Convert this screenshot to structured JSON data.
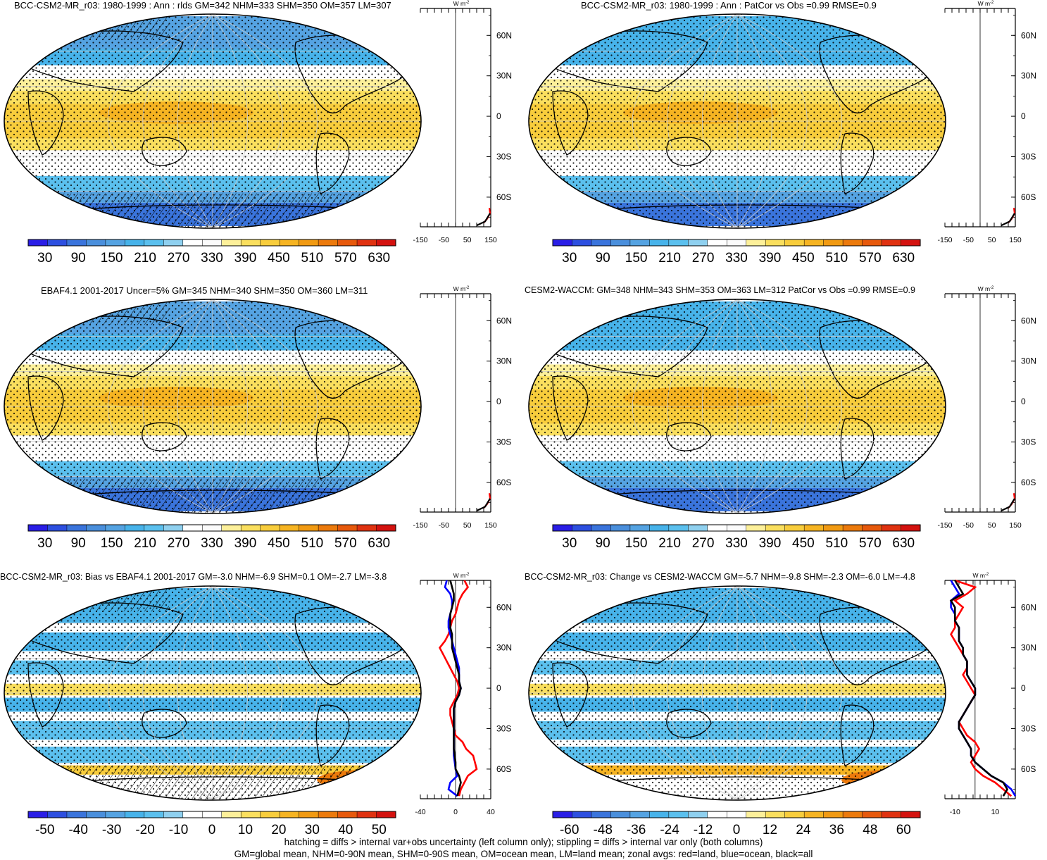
{
  "footer": {
    "line1": "hatching = diffs > internal var+obs uncertainty (left column only); stippling = diffs > internal var only (both columns)",
    "line2": "GM=global mean, NHM=0-90N mean, SHM=0-90S mean, OM=ocean mean, LM=land mean; zonal avgs: red=land, blue=ocean, black=all"
  },
  "colors": {
    "abs_scale": [
      "#2a1ee6",
      "#2d4fe0",
      "#3a74dc",
      "#4a8fdc",
      "#55a3e2",
      "#47b3ea",
      "#5bc0ee",
      "#8fd0ef",
      "#ffffff",
      "#fbfbfb",
      "#fdf09a",
      "#fadf5e",
      "#f8cd3c",
      "#f6b422",
      "#f19a12",
      "#ec7a0c",
      "#e7590c",
      "#e03210",
      "#d4120f"
    ],
    "diff_scale": [
      "#2a1ee6",
      "#2d4fe0",
      "#3a74dc",
      "#4a8fdc",
      "#55a3e2",
      "#47b3ea",
      "#5bc0ee",
      "#8fd0ef",
      "#ffffff",
      "#ffffff",
      "#fdf09a",
      "#fadf5e",
      "#f8cd3c",
      "#f6b422",
      "#f19a12",
      "#ec7a0c",
      "#e7590c",
      "#e03210",
      "#d4120f"
    ],
    "land_line": "#ff0000",
    "ocean_line": "#0000ff",
    "all_line": "#000000"
  },
  "chart_data": [
    {
      "type": "heatmap",
      "title": "BCC-CSM2-MR_r03: 1980-1999 : Ann : rlds GM=342 NHM=333 SHM=350 OM=357 LM=307",
      "colorbar": {
        "ticks": [
          "30",
          "90",
          "150",
          "210",
          "270",
          "330",
          "390",
          "450",
          "510",
          "570",
          "630"
        ],
        "range": [
          0,
          660
        ],
        "scale": "abs_scale"
      },
      "zonal_avg": {
        "unit_label": "W m",
        "unit_exp": "-2",
        "ticks": [
          "-150",
          "-50",
          "50",
          "150"
        ],
        "lat_ticks": [
          "60N",
          "30N",
          "0",
          "30S",
          "60S"
        ],
        "xlim": [
          -150,
          150
        ],
        "lines": "edge"
      },
      "hatching": true,
      "stippling": true
    },
    {
      "type": "heatmap",
      "title": "BCC-CSM2-MR_r03: 1980-1999 : Ann : PatCor vs Obs =0.99 RMSE=0.9",
      "colorbar": {
        "ticks": [
          "30",
          "90",
          "150",
          "210",
          "270",
          "330",
          "390",
          "450",
          "510",
          "570",
          "630"
        ],
        "range": [
          0,
          660
        ],
        "scale": "abs_scale"
      },
      "zonal_avg": {
        "unit_label": "W m",
        "unit_exp": "-2",
        "ticks": [
          "-150",
          "-50",
          "50",
          "150"
        ],
        "lat_ticks": [
          "60N",
          "30N",
          "0",
          "30S",
          "60S"
        ],
        "xlim": [
          -150,
          150
        ],
        "lines": "edge"
      },
      "hatching": false,
      "stippling": true
    },
    {
      "type": "heatmap",
      "title": "EBAF4.1 2001-2017 Uncer=5% GM=345 NHM=340 SHM=350 OM=360 LM=311",
      "colorbar": {
        "ticks": [
          "30",
          "90",
          "150",
          "210",
          "270",
          "330",
          "390",
          "450",
          "510",
          "570",
          "630"
        ],
        "range": [
          0,
          660
        ],
        "scale": "abs_scale"
      },
      "zonal_avg": {
        "unit_label": "W m",
        "unit_exp": "-2",
        "ticks": [
          "-150",
          "-50",
          "50",
          "150"
        ],
        "lat_ticks": [
          "60N",
          "30N",
          "0",
          "30S",
          "60S"
        ],
        "xlim": [
          -150,
          150
        ],
        "lines": "edge"
      },
      "hatching": true,
      "stippling": true
    },
    {
      "type": "heatmap",
      "title": "CESM2-WACCM: GM=348 NHM=343 SHM=353 OM=363 LM=312 PatCor vs Obs =0.99 RMSE=0.9",
      "colorbar": {
        "ticks": [
          "30",
          "90",
          "150",
          "210",
          "270",
          "330",
          "390",
          "450",
          "510",
          "570",
          "630"
        ],
        "range": [
          0,
          660
        ],
        "scale": "abs_scale"
      },
      "zonal_avg": {
        "unit_label": "W m",
        "unit_exp": "-2",
        "ticks": [
          "-150",
          "-50",
          "50",
          "150"
        ],
        "lat_ticks": [
          "60N",
          "30N",
          "0",
          "30S",
          "60S"
        ],
        "xlim": [
          -150,
          150
        ],
        "lines": "edge"
      },
      "hatching": false,
      "stippling": true
    },
    {
      "type": "heatmap",
      "title": "BCC-CSM2-MR_r03: Bias vs EBAF4.1 2001-2017 GM=-3.0 NHM=-6.9 SHM=0.1 OM=-2.7 LM=-3.8",
      "colorbar": {
        "ticks": [
          "-50",
          "-40",
          "-30",
          "-20",
          "-10",
          "0",
          "10",
          "20",
          "30",
          "40",
          "50"
        ],
        "range": [
          -55,
          55
        ],
        "scale": "diff_scale"
      },
      "zonal_avg": {
        "unit_label": "W m",
        "unit_exp": "-2",
        "ticks": [
          "-40",
          "0",
          "40"
        ],
        "lat_ticks": [
          "60N",
          "30N",
          "0",
          "30S",
          "60S"
        ],
        "xlim": [
          -40,
          40
        ],
        "lines": "bias",
        "lat": [
          80,
          75,
          70,
          65,
          60,
          55,
          50,
          45,
          40,
          35,
          30,
          25,
          20,
          15,
          10,
          5,
          0,
          -5,
          -10,
          -15,
          -20,
          -25,
          -30,
          -35,
          -40,
          -45,
          -50,
          -55,
          -60,
          -65,
          -70,
          -75,
          -80
        ],
        "land": [
          10,
          14,
          8,
          4,
          2,
          0,
          -4,
          -6,
          -8,
          -12,
          -18,
          -14,
          -10,
          -6,
          -2,
          2,
          4,
          2,
          -2,
          -6,
          -6,
          -4,
          -2,
          0,
          8,
          12,
          20,
          22,
          24,
          14,
          10,
          6,
          4
        ],
        "ocean": [
          -10,
          -12,
          -6,
          -4,
          -4,
          -6,
          -8,
          -8,
          -6,
          -4,
          -2,
          0,
          2,
          4,
          4,
          4,
          6,
          4,
          0,
          -2,
          -2,
          -2,
          -2,
          -2,
          -2,
          -2,
          -2,
          -1,
          0,
          2,
          -6,
          -8,
          2
        ],
        "all": [
          -6,
          -4,
          -2,
          -2,
          -4,
          -6,
          -6,
          -6,
          -4,
          -4,
          -4,
          -2,
          0,
          2,
          4,
          4,
          6,
          4,
          0,
          -2,
          -2,
          -2,
          -2,
          -2,
          -2,
          -2,
          -1,
          0,
          0,
          4,
          6,
          4,
          2
        ]
      },
      "hatching": true,
      "stippling": true
    },
    {
      "type": "heatmap",
      "title": "BCC-CSM2-MR_r03: Change vs CESM2-WACCM GM=-5.7 NHM=-9.8 SHM=-2.3 OM=-6.0 LM=-4.8",
      "colorbar": {
        "ticks": [
          "-60",
          "-48",
          "-36",
          "-24",
          "-12",
          "0",
          "12",
          "24",
          "36",
          "48",
          "60"
        ],
        "range": [
          -66,
          66
        ],
        "scale": "diff_scale"
      },
      "zonal_avg": {
        "unit_label": "W m",
        "unit_exp": "-2",
        "ticks": [
          "-10",
          "10"
        ],
        "lat_ticks": [
          "60N",
          "30N",
          "0",
          "30S",
          "60S"
        ],
        "xlim": [
          -15,
          20
        ],
        "lines": "change",
        "lat": [
          80,
          75,
          70,
          65,
          60,
          55,
          50,
          45,
          40,
          35,
          30,
          25,
          20,
          15,
          10,
          5,
          0,
          -5,
          -10,
          -15,
          -20,
          -25,
          -30,
          -35,
          -40,
          -45,
          -50,
          -55,
          -60,
          -65,
          -70,
          -75,
          -80
        ],
        "land": [
          -10,
          0,
          -4,
          -10,
          -6,
          -8,
          -10,
          -10,
          -12,
          -10,
          -8,
          -6,
          -4,
          -4,
          -6,
          -4,
          -2,
          0,
          -2,
          -4,
          -6,
          -8,
          -6,
          -4,
          0,
          2,
          0,
          -2,
          0,
          4,
          10,
          14,
          18
        ],
        "ocean": [
          -12,
          -10,
          -8,
          -12,
          -12,
          -10,
          -10,
          -8,
          -8,
          -8,
          -6,
          -6,
          -4,
          -4,
          -4,
          -2,
          0,
          0,
          -2,
          -4,
          -6,
          -8,
          -8,
          -6,
          -4,
          -2,
          -2,
          0,
          4,
          8,
          14,
          18,
          20
        ],
        "all": [
          -10,
          -8,
          -6,
          -12,
          -10,
          -10,
          -10,
          -8,
          -8,
          -8,
          -6,
          -6,
          -4,
          -4,
          -4,
          -2,
          0,
          0,
          -2,
          -4,
          -6,
          -8,
          -8,
          -6,
          -4,
          -2,
          -2,
          0,
          4,
          8,
          14,
          16,
          14
        ]
      },
      "hatching": false,
      "stippling": true
    }
  ]
}
